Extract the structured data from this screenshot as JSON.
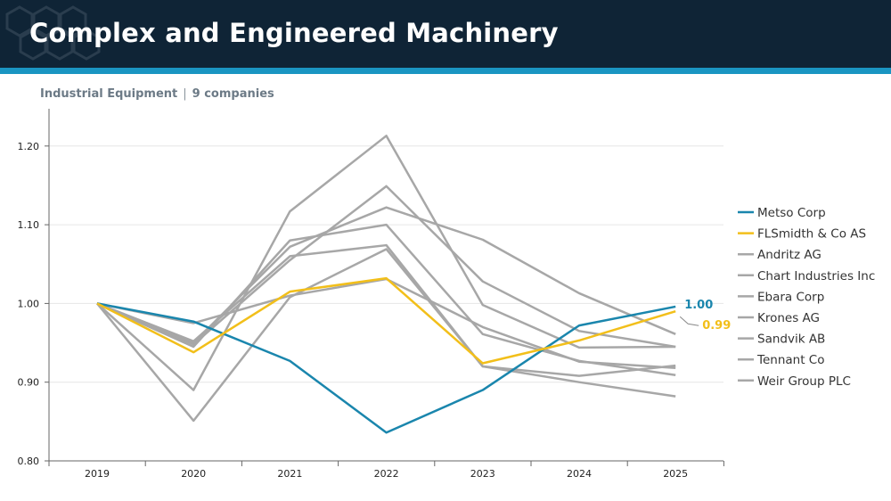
{
  "header": {
    "title": "Complex and Engineered Machinery"
  },
  "subheader": {
    "sector": "Industrial Equipment",
    "separator": "|",
    "company_count": "9 companies"
  },
  "colors": {
    "header_bg": "#0f2436",
    "header_accent": "#1a95c2",
    "metso": "#1a86ad",
    "flsmidth": "#f2bf1a",
    "peer": "#a7a7a7"
  },
  "chart_data": {
    "type": "line",
    "title": "",
    "xlabel": "",
    "ylabel": "",
    "x": [
      "2019",
      "2020",
      "2021",
      "2022",
      "2023",
      "2024",
      "2025"
    ],
    "ylim": [
      0.8,
      1.25
    ],
    "yticks": [
      "0.80",
      "0.90",
      "1.00",
      "1.10",
      "1.20"
    ],
    "ytick_values": [
      0.8,
      0.9,
      1.0,
      1.1,
      1.2
    ],
    "grid": true,
    "legend_position": "right",
    "series": [
      {
        "name": "Metso Corp",
        "color": "#1a86ad",
        "highlight": true,
        "end_label": "1.00",
        "values": [
          1.0,
          0.977,
          0.927,
          0.836,
          0.89,
          0.972,
          0.996
        ]
      },
      {
        "name": "FLSmidth & Co AS",
        "color": "#f2bf1a",
        "highlight": true,
        "end_label": "0.99",
        "values": [
          1.0,
          0.938,
          1.015,
          1.032,
          0.924,
          0.953,
          0.99
        ]
      },
      {
        "name": "Andritz AG",
        "color": "#a7a7a7",
        "values": [
          1.0,
          0.975,
          1.01,
          1.031,
          0.97,
          0.926,
          0.918
        ]
      },
      {
        "name": "Chart Industries Inc",
        "color": "#a7a7a7",
        "values": [
          1.0,
          0.851,
          1.008,
          1.069,
          0.92,
          0.908,
          0.921
        ]
      },
      {
        "name": "Ebara Corp",
        "color": "#a7a7a7",
        "values": [
          1.0,
          0.89,
          1.117,
          1.213,
          0.998,
          0.944,
          0.945
        ]
      },
      {
        "name": "Krones AG",
        "color": "#a7a7a7",
        "values": [
          1.0,
          0.945,
          1.08,
          1.1,
          0.961,
          0.927,
          0.909
        ]
      },
      {
        "name": "Sandvik AB",
        "color": "#a7a7a7",
        "values": [
          1.0,
          0.952,
          1.06,
          1.074,
          0.92,
          0.9,
          0.882
        ]
      },
      {
        "name": "Tennant Co",
        "color": "#a7a7a7",
        "values": [
          1.0,
          0.948,
          1.055,
          1.149,
          1.028,
          0.965,
          0.945
        ]
      },
      {
        "name": "Weir Group PLC",
        "color": "#a7a7a7",
        "values": [
          1.0,
          0.95,
          1.072,
          1.122,
          1.081,
          1.013,
          0.961
        ]
      }
    ]
  }
}
